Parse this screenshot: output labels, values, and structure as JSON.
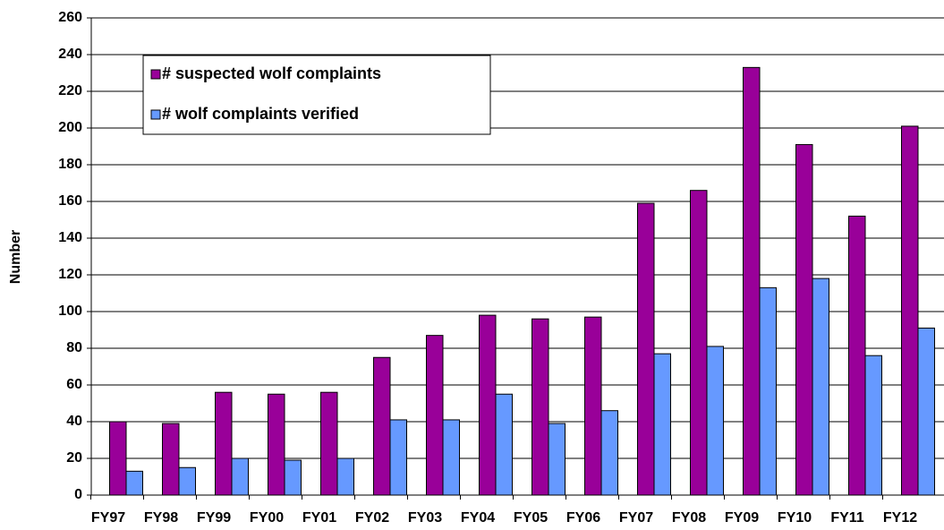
{
  "chart_data": {
    "type": "bar",
    "y_label": "Number",
    "categories": [
      "FY97",
      "FY98",
      "FY99",
      "FY00",
      "FY01",
      "FY02",
      "FY03",
      "FY04",
      "FY05",
      "FY06",
      "FY07",
      "FY08",
      "FY09",
      "FY10",
      "FY11",
      "FY12"
    ],
    "series": [
      {
        "name": "# suspected wolf complaints",
        "color": "#990099",
        "values": [
          40,
          39,
          56,
          55,
          56,
          75,
          87,
          98,
          96,
          97,
          159,
          166,
          233,
          191,
          152,
          201
        ]
      },
      {
        "name": "# wolf complaints verified",
        "color": "#6699ff",
        "values": [
          13,
          15,
          20,
          19,
          20,
          41,
          41,
          55,
          39,
          46,
          77,
          81,
          113,
          118,
          76,
          91
        ]
      }
    ],
    "ylim": [
      0,
      260
    ],
    "yticks": [
      0,
      20,
      40,
      60,
      80,
      100,
      120,
      140,
      160,
      180,
      200,
      220,
      240,
      260
    ],
    "grid": true,
    "legend": "upper left"
  }
}
